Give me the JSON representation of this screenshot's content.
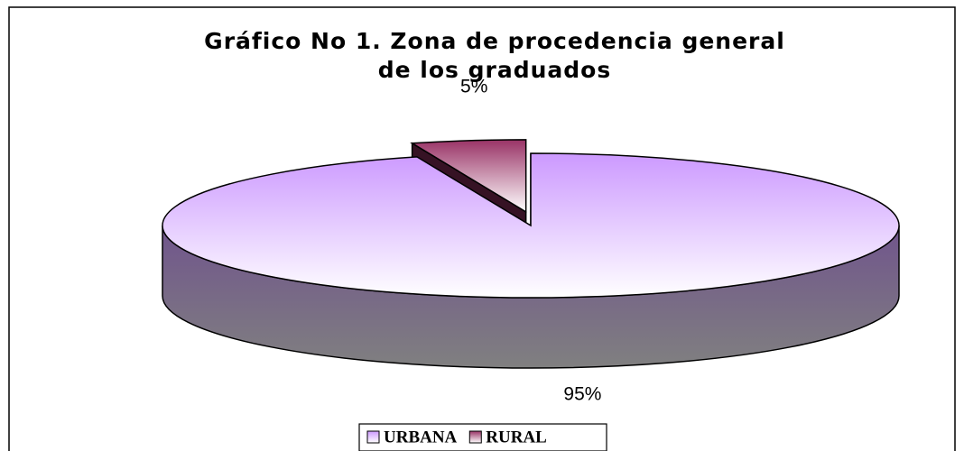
{
  "chart_data": {
    "type": "pie",
    "title": [
      "Gráfico No 1.  Zona de procedencia general",
      "de los graduados"
    ],
    "categories": [
      "URBANA",
      "RURAL"
    ],
    "values": [
      95,
      5
    ],
    "value_labels": [
      "95%",
      "5%"
    ],
    "colors": [
      "#cc99ff",
      "#993366"
    ],
    "legend": "bottom"
  }
}
